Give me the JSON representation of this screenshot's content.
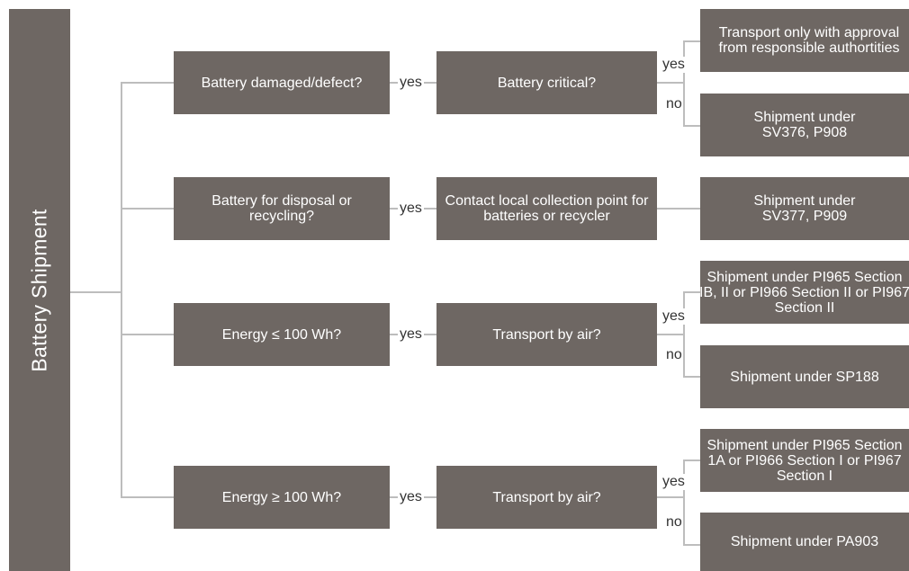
{
  "root": {
    "label": "Battery Shipment"
  },
  "rows": [
    {
      "question": "Battery damaged/defect?",
      "link": "yes",
      "action": "Battery critical?",
      "branches": [
        {
          "label": "yes",
          "outcome": "Transport only with approval from responsible authortities"
        },
        {
          "label": "no",
          "outcome": "Shipment under SV376, P908"
        }
      ]
    },
    {
      "question": "Battery for disposal or recycling?",
      "link": "yes",
      "action": "Contact local collection point for batteries or recycler",
      "outcome": "Shipment under SV377, P909"
    },
    {
      "question": "Energy ≤ 100 Wh?",
      "link": "yes",
      "action": "Transport by air?",
      "branches": [
        {
          "label": "yes",
          "outcome": "Shipment under PI965 Section IB, II or PI966 Section II or PI967 Section II"
        },
        {
          "label": "no",
          "outcome": "Shipment under SP188"
        }
      ]
    },
    {
      "question": "Energy ≥ 100 Wh?",
      "link": "yes",
      "action": "Transport by air?",
      "branches": [
        {
          "label": "yes",
          "outcome": "Shipment under PI965 Section 1A or PI966 Section I or PI967 Section I"
        },
        {
          "label": "no",
          "outcome": "Shipment under PA903"
        }
      ]
    }
  ],
  "colors": {
    "box": "#6e6763",
    "connector": "#bdbdbd",
    "label_text": "#333333"
  }
}
